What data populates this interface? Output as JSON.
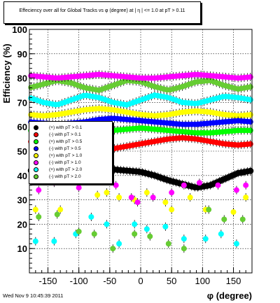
{
  "title": "Effeciency over all for Global Tracks vs φ (degree) at |  η | <= 1.0 at pT > 0.11",
  "footer_date": "Wed Nov  9 10:45:39 2011",
  "chart_data": {
    "type": "scatter",
    "xlabel": "φ (degree)",
    "ylabel": "Efficiency (%)",
    "xlim": [
      -180,
      180
    ],
    "ylim": [
      0,
      100
    ],
    "x_ticks": [
      -150,
      -100,
      -50,
      0,
      50,
      100,
      150
    ],
    "y_ticks": [
      10,
      20,
      30,
      40,
      50,
      60,
      70,
      80,
      90,
      100
    ],
    "grid": true,
    "legend_position": "left-middle",
    "series": [
      {
        "name": "(+) with pT > 0.1",
        "color": "#000000",
        "kind": "dense",
        "pattern": [
          42,
          42.5,
          43,
          43.5,
          43.5,
          43,
          42.5,
          42,
          41.5,
          40,
          38,
          36.5,
          35,
          36,
          38.5,
          41,
          42
        ]
      },
      {
        "name": "(-) with pT > 0.1",
        "color": "#ff0000",
        "kind": "dense",
        "pattern": [
          54,
          53,
          52,
          51.5,
          51,
          50.5,
          51,
          52,
          53,
          54,
          55,
          55.5,
          55,
          54,
          53,
          52.5,
          53
        ]
      },
      {
        "name": "(+) with pT > 0.5",
        "color": "#00ff00",
        "kind": "dense",
        "pattern": [
          58.5,
          58,
          57.5,
          57,
          57.5,
          58,
          58.5,
          59,
          59.5,
          59,
          58.5,
          58,
          57.5,
          57.5,
          58,
          58.5,
          58.5
        ]
      },
      {
        "name": "(-) with pT > 0.5",
        "color": "#0000ff",
        "kind": "dense",
        "pattern": [
          62,
          61.5,
          61,
          61.5,
          62,
          63,
          63.5,
          63,
          62.5,
          62,
          61.5,
          61,
          61,
          61.5,
          62,
          62.5,
          62
        ]
      },
      {
        "name": "(+) with pT > 1.0",
        "color": "#ffff00",
        "kind": "dense",
        "pattern": [
          65,
          64.5,
          65,
          66,
          67,
          67.5,
          67,
          66,
          65,
          64.5,
          65,
          66,
          66.5,
          66,
          65,
          64.5,
          65
        ]
      },
      {
        "name": "(-) with pT > 1.0",
        "color": "#ff00ff",
        "kind": "dense",
        "pattern": [
          81,
          80.5,
          80,
          80.5,
          81,
          81.5,
          81,
          80.5,
          80,
          80,
          80.5,
          81,
          81.5,
          81,
          80.5,
          80,
          80.5
        ]
      },
      {
        "name": "(+) with pT > 2.0",
        "color": "#00ffff",
        "kind": "dense",
        "pattern": [
          72,
          70,
          69,
          71,
          73,
          72,
          70,
          69,
          71,
          73,
          72,
          70,
          69.5,
          71,
          72.5,
          72,
          71
        ]
      },
      {
        "name": "(-) with pT > 2.0",
        "color": "#66cc33",
        "kind": "dense",
        "pattern": [
          76,
          77.5,
          79,
          78,
          76,
          75,
          77,
          79,
          78.5,
          76.5,
          75,
          76.5,
          78.5,
          79,
          77,
          75.5,
          76.5
        ]
      }
    ],
    "sparse_series": [
      {
        "color": "#ffff00",
        "points": [
          [
            -170,
            26
          ],
          [
            -130,
            26
          ],
          [
            -70,
            32
          ],
          [
            -55,
            33
          ],
          [
            -35,
            31
          ],
          [
            -10,
            30
          ],
          [
            10,
            33
          ],
          [
            40,
            29
          ],
          [
            50,
            26
          ],
          [
            80,
            31
          ],
          [
            105,
            26
          ],
          [
            150,
            25
          ],
          [
            170,
            31
          ]
        ]
      },
      {
        "color": "#ff00ff",
        "points": [
          [
            -165,
            34
          ],
          [
            -140,
            37
          ],
          [
            -100,
            35
          ],
          [
            -40,
            36
          ],
          [
            -15,
            31
          ],
          [
            -5,
            29
          ],
          [
            20,
            31
          ],
          [
            50,
            33
          ],
          [
            70,
            36
          ],
          [
            95,
            37
          ],
          [
            125,
            36
          ],
          [
            155,
            34
          ],
          [
            170,
            36
          ]
        ]
      },
      {
        "color": "#00ffff",
        "points": [
          [
            -170,
            13
          ],
          [
            -140,
            13
          ],
          [
            -105,
            16
          ],
          [
            -80,
            23
          ],
          [
            -55,
            20
          ],
          [
            -35,
            12
          ],
          [
            -10,
            20
          ],
          [
            10,
            18
          ],
          [
            40,
            19
          ],
          [
            70,
            14
          ],
          [
            105,
            14
          ],
          [
            130,
            16
          ],
          [
            155,
            12
          ]
        ]
      },
      {
        "color": "#66cc33",
        "points": [
          [
            -165,
            23
          ],
          [
            -135,
            24
          ],
          [
            -100,
            17
          ],
          [
            -75,
            16
          ],
          [
            -45,
            10
          ],
          [
            -10,
            16
          ],
          [
            15,
            15
          ],
          [
            45,
            12
          ],
          [
            70,
            10
          ],
          [
            110,
            26
          ],
          [
            135,
            22
          ],
          [
            165,
            22
          ]
        ]
      }
    ]
  },
  "legend": [
    {
      "label": "(+) with pT > 0.1",
      "color": "#000000"
    },
    {
      "label": "(-) with pT > 0.1",
      "color": "#ff0000"
    },
    {
      "label": "(+) with pT > 0.5",
      "color": "#00ff00"
    },
    {
      "label": "(-) with pT > 0.5",
      "color": "#0000ff"
    },
    {
      "label": "(+) with pT > 1.0",
      "color": "#ffff00"
    },
    {
      "label": "(-) with pT > 1.0",
      "color": "#ff00ff"
    },
    {
      "label": "(+) with pT > 2.0",
      "color": "#00ffff"
    },
    {
      "label": "(-) with pT > 2.0",
      "color": "#66cc33"
    }
  ]
}
